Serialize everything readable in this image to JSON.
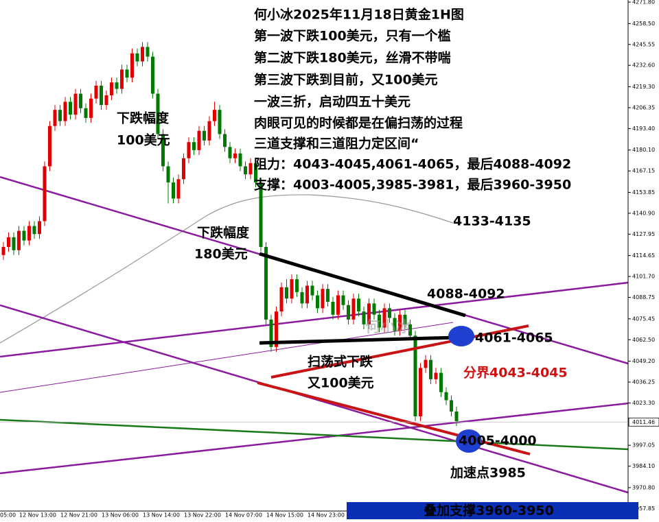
{
  "chart_data": {
    "type": "candlestick",
    "title": "何小冰2025年11月18日黄金1H图",
    "notes": [
      "第一波下跌100美元，只有一个槛",
      "第二波下跌180美元，丝滑不带喘",
      "第三波下跌到目前，又100美元",
      "一波三折，启动四五十美元",
      "肉眼可见的时候都是在偏扫荡的过程",
      "三道支撑和三道阻力定区间“",
      "阻力：4043-4045,4061-4065，最后4088-4092",
      "支撑：4003-4005,3985-3981，最后3960-3950"
    ],
    "annotations": [
      "下跌幅度",
      "100美元",
      "下跌幅度",
      "180美元",
      "4133-4135",
      "4088-4092",
      "4061-4065",
      "分界4043-4045",
      "扫荡式下跌",
      "又100美元",
      "4005-4000",
      "加速点3985",
      "叠加支撑3960-3950",
      "何小冰"
    ],
    "up_color": "#e00000",
    "down_color": "#007a00",
    "ylim": [
      3956.3,
      4273.1
    ],
    "yticks": [
      {
        "value": 4271.8,
        "label": "4271.80"
      },
      {
        "value": 4258.5,
        "label": "4258.50"
      },
      {
        "value": 4245.55,
        "label": "4245.55"
      },
      {
        "value": 4232.6,
        "label": "4232.60"
      },
      {
        "value": 4219.3,
        "label": "4219.30"
      },
      {
        "value": 4206.35,
        "label": "4206.35"
      },
      {
        "value": 4193.4,
        "label": "4193.40"
      },
      {
        "value": 4180.1,
        "label": "4180.10"
      },
      {
        "value": 4167.15,
        "label": "4167.15"
      },
      {
        "value": 4153.85,
        "label": "4153.85"
      },
      {
        "value": 4140.9,
        "label": "4140.90"
      },
      {
        "value": 4127.95,
        "label": "4127.95"
      },
      {
        "value": 4114.65,
        "label": "4114.65"
      },
      {
        "value": 4101.7,
        "label": "4101.70"
      },
      {
        "value": 4088.75,
        "label": "4088.75"
      },
      {
        "value": 4075.45,
        "label": "4075.45"
      },
      {
        "value": 4062.5,
        "label": "4062.50"
      },
      {
        "value": 4049.2,
        "label": "4049.20"
      },
      {
        "value": 4036.25,
        "label": "4036.25"
      },
      {
        "value": 4023.3,
        "label": "4023.30"
      },
      {
        "value": 3997.05,
        "label": "3997.05"
      },
      {
        "value": 3984.1,
        "label": "3984.10"
      },
      {
        "value": 3970.8,
        "label": "3970.80"
      },
      {
        "value": 3957.85,
        "label": "3957.85"
      }
    ],
    "current_price": {
      "value": 4011.46,
      "label": "4011.46"
    },
    "xticks": [
      "05:00",
      "12 Nov 13:00",
      "12 Nov 21:00",
      "13 Nov 06:00",
      "13 Nov 14:00",
      "13 Nov 22:00",
      "14 Nov 07:00",
      "14 Nov 15:00",
      "14 Nov 23:00"
    ],
    "candles": [
      [
        4115,
        4123,
        4112,
        4120
      ],
      [
        4120,
        4129,
        4117,
        4126
      ],
      [
        4126,
        4129,
        4115,
        4118
      ],
      [
        4118,
        4133,
        4115,
        4130
      ],
      [
        4130,
        4133,
        4121,
        4124
      ],
      [
        4124,
        4136,
        4121,
        4133
      ],
      [
        4133,
        4136,
        4125,
        4128
      ],
      [
        4128,
        4139,
        4125,
        4136
      ],
      [
        4136,
        4173,
        4133,
        4170
      ],
      [
        4170,
        4198,
        4167,
        4195
      ],
      [
        4195,
        4208,
        4192,
        4205
      ],
      [
        4205,
        4208,
        4195,
        4198
      ],
      [
        4198,
        4213,
        4195,
        4210
      ],
      [
        4210,
        4213,
        4199,
        4202
      ],
      [
        4202,
        4218,
        4199,
        4215
      ],
      [
        4215,
        4218,
        4203,
        4206
      ],
      [
        4206,
        4209,
        4197,
        4200
      ],
      [
        4200,
        4215,
        4197,
        4212
      ],
      [
        4212,
        4223,
        4209,
        4220
      ],
      [
        4220,
        4223,
        4205,
        4208
      ],
      [
        4208,
        4217,
        4205,
        4214
      ],
      [
        4214,
        4225,
        4211,
        4222
      ],
      [
        4222,
        4225,
        4215,
        4218
      ],
      [
        4218,
        4233,
        4215,
        4230
      ],
      [
        4230,
        4233,
        4222,
        4225
      ],
      [
        4225,
        4243,
        4222,
        4240
      ],
      [
        4240,
        4243,
        4232,
        4235
      ],
      [
        4235,
        4247,
        4232,
        4244
      ],
      [
        4244,
        4247,
        4235,
        4238
      ],
      [
        4238,
        4241,
        4212,
        4215
      ],
      [
        4215,
        4218,
        4187,
        4190
      ],
      [
        4190,
        4193,
        4167,
        4170
      ],
      [
        4170,
        4173,
        4147,
        4160
      ],
      [
        4160,
        4163,
        4147,
        4150
      ],
      [
        4150,
        4165,
        4147,
        4162
      ],
      [
        4162,
        4178,
        4159,
        4175
      ],
      [
        4175,
        4188,
        4172,
        4185
      ],
      [
        4185,
        4188,
        4177,
        4180
      ],
      [
        4180,
        4195,
        4177,
        4192
      ],
      [
        4192,
        4195,
        4183,
        4186
      ],
      [
        4186,
        4201,
        4183,
        4198
      ],
      [
        4198,
        4210,
        4195,
        4205
      ],
      [
        4205,
        4208,
        4187,
        4190
      ],
      [
        4190,
        4193,
        4179,
        4182
      ],
      [
        4182,
        4185,
        4172,
        4175
      ],
      [
        4175,
        4181,
        4172,
        4178
      ],
      [
        4178,
        4181,
        4167,
        4170
      ],
      [
        4170,
        4173,
        4162,
        4165
      ],
      [
        4165,
        4175,
        4162,
        4172
      ],
      [
        4172,
        4175,
        4157,
        4160
      ],
      [
        4160,
        4163,
        4117,
        4120
      ],
      [
        4120,
        4123,
        4072,
        4075
      ],
      [
        4075,
        4078,
        4055,
        4058
      ],
      [
        4058,
        4083,
        4055,
        4080
      ],
      [
        4080,
        4098,
        4077,
        4095
      ],
      [
        4095,
        4100,
        4085,
        4088
      ],
      [
        4088,
        4103,
        4085,
        4100
      ],
      [
        4100,
        4103,
        4089,
        4092
      ],
      [
        4092,
        4095,
        4082,
        4085
      ],
      [
        4085,
        4099,
        4082,
        4096
      ],
      [
        4096,
        4099,
        4087,
        4090
      ],
      [
        4090,
        4093,
        4079,
        4082
      ],
      [
        4082,
        4097,
        4079,
        4094
      ],
      [
        4094,
        4097,
        4083,
        4086
      ],
      [
        4086,
        4089,
        4075,
        4078
      ],
      [
        4078,
        4093,
        4075,
        4090
      ],
      [
        4090,
        4093,
        4081,
        4084
      ],
      [
        4084,
        4087,
        4072,
        4075
      ],
      [
        4075,
        4091,
        4072,
        4088
      ],
      [
        4088,
        4091,
        4077,
        4080
      ],
      [
        4080,
        4083,
        4069,
        4072
      ],
      [
        4072,
        4088,
        4069,
        4085
      ],
      [
        4085,
        4088,
        4075,
        4078
      ],
      [
        4078,
        4081,
        4067,
        4070
      ],
      [
        4070,
        4085,
        4067,
        4082
      ],
      [
        4082,
        4085,
        4073,
        4076
      ],
      [
        4076,
        4079,
        4065,
        4068
      ],
      [
        4068,
        4081,
        4065,
        4078
      ],
      [
        4078,
        4081,
        4069,
        4072
      ],
      [
        4072,
        4075,
        4062,
        4065
      ],
      [
        4065,
        4068,
        4012,
        4015
      ],
      [
        4015,
        4048,
        4012,
        4045
      ],
      [
        4045,
        4053,
        4042,
        4050
      ],
      [
        4050,
        4053,
        4035,
        4038
      ],
      [
        4038,
        4045,
        4035,
        4042
      ],
      [
        4042,
        4045,
        4027,
        4030
      ],
      [
        4030,
        4033,
        4022,
        4025
      ],
      [
        4025,
        4028,
        4015,
        4018
      ],
      [
        4018,
        4021,
        4009,
        4012
      ]
    ]
  }
}
